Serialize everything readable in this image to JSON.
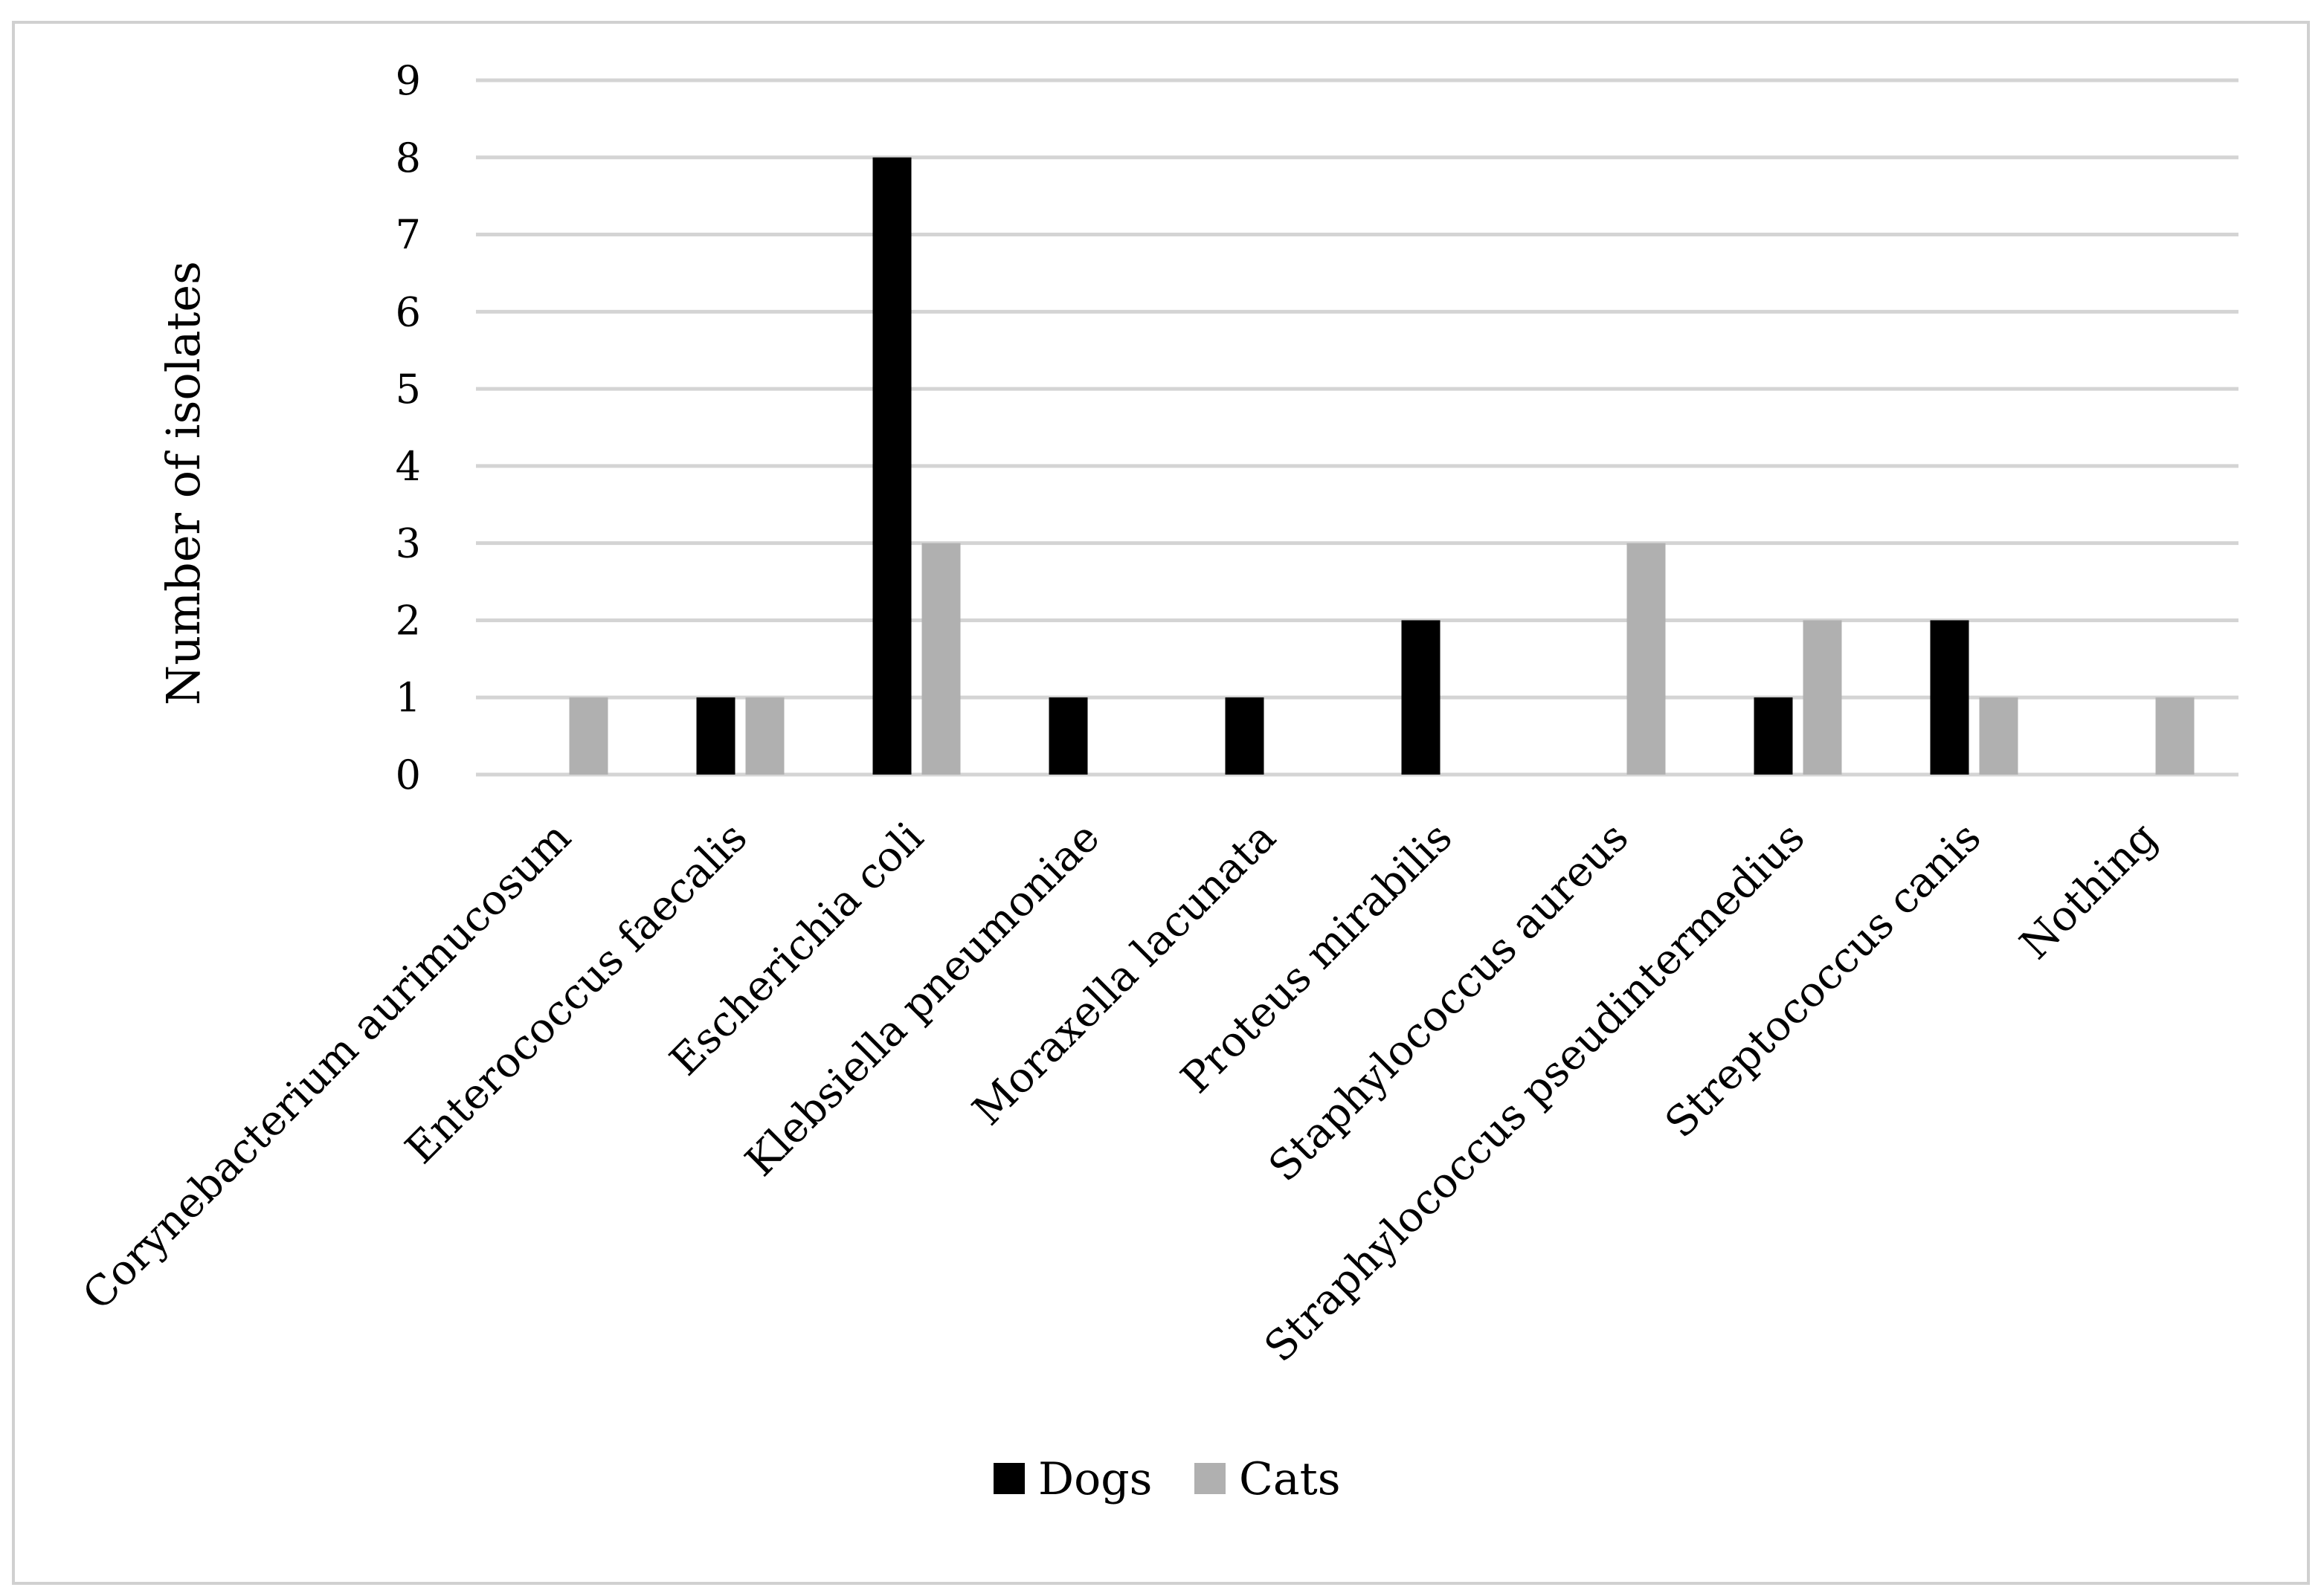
{
  "chart_data": {
    "type": "bar",
    "title": "",
    "xlabel": "",
    "ylabel": "Number of isolates",
    "ylim": [
      0,
      9
    ],
    "yticks": [
      0,
      1,
      2,
      3,
      4,
      5,
      6,
      7,
      8,
      9
    ],
    "grid": true,
    "legend_position": "bottom-center",
    "categories": [
      "Corynebacterium aurimucosum",
      "Enterococcus faecalis",
      "Escherichia coli",
      "Klebsiella pneumoniae",
      "Moraxella lacunata",
      "Proteus mirabilis",
      "Staphylococcus aureus",
      "Straphylococcus pseudintermedius",
      "Streptococcus canis",
      "Nothing"
    ],
    "series": [
      {
        "name": "Dogs",
        "color": "#000000",
        "values": [
          0,
          1,
          8,
          1,
          1,
          2,
          0,
          1,
          2,
          0
        ]
      },
      {
        "name": "Cats",
        "color": "#b0b0b0",
        "values": [
          1,
          1,
          3,
          0,
          0,
          0,
          3,
          2,
          1,
          1
        ]
      }
    ]
  },
  "colors": {
    "gridline": "#d4d4d4",
    "frame": "#d0d0d0"
  }
}
